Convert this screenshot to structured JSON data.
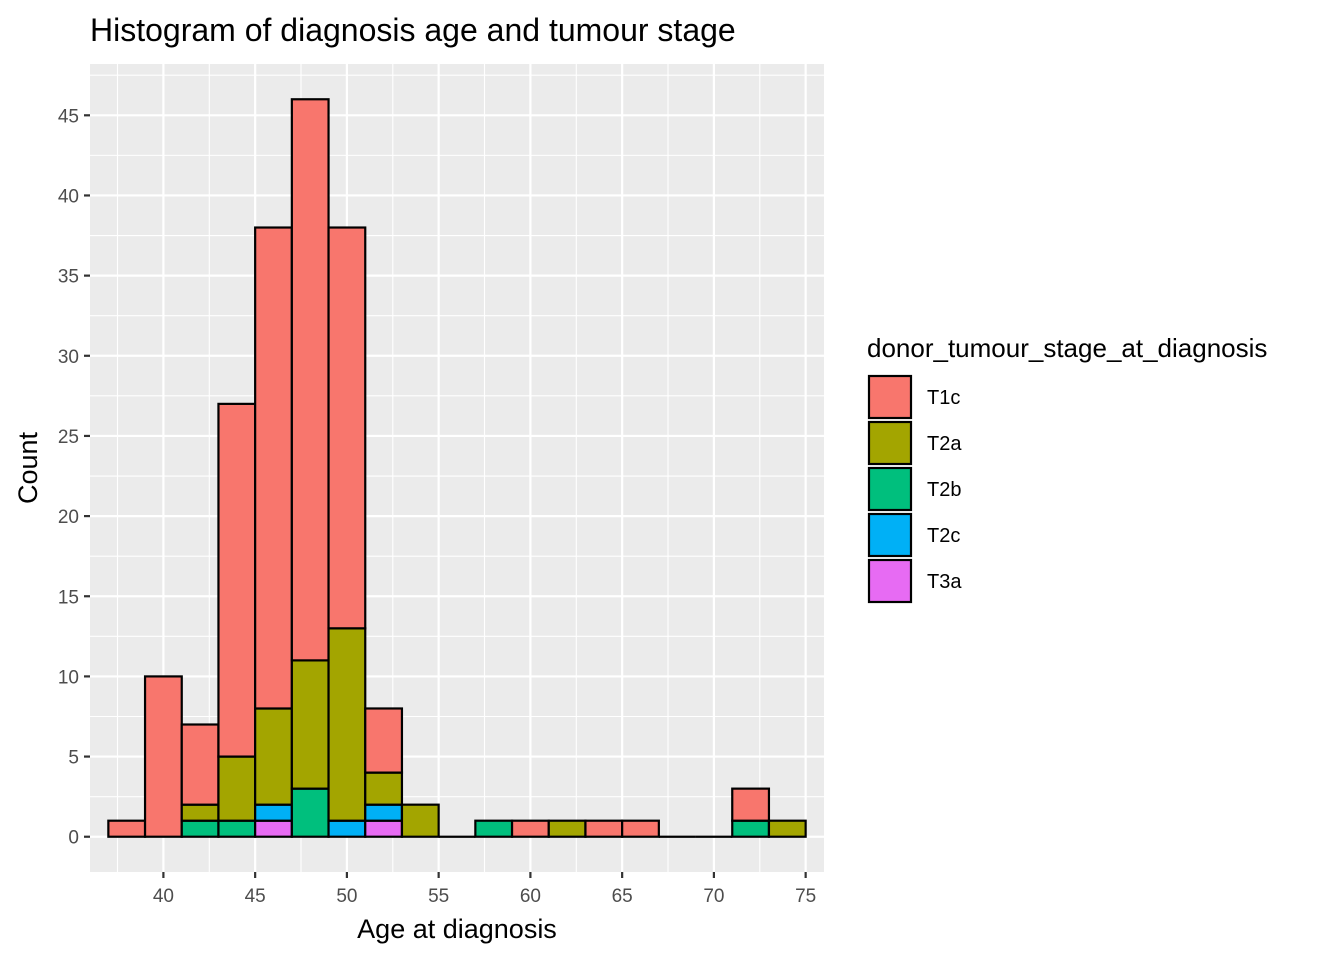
{
  "chart_data": {
    "type": "bar",
    "stacked": true,
    "title": "Histogram of diagnosis age and tumour stage",
    "xlabel": "Age at diagnosis",
    "ylabel": "Count",
    "xlim": [
      36,
      76
    ],
    "ylim": [
      -2.2,
      48.2
    ],
    "x_ticks": [
      40,
      45,
      50,
      55,
      60,
      65,
      70,
      75
    ],
    "y_ticks": [
      0,
      5,
      10,
      15,
      20,
      25,
      30,
      35,
      40,
      45
    ],
    "bin_width": 2,
    "bin_centers": [
      38,
      40,
      42,
      44,
      46,
      48,
      50,
      52,
      54,
      56,
      58,
      60,
      62,
      64,
      66,
      68,
      70,
      72,
      74
    ],
    "legend_title": "donor_tumour_stage_at_diagnosis",
    "legend_position": "right",
    "grid": true,
    "background": "#ebebeb",
    "series": [
      {
        "name": "T1c",
        "color": "#f8766d",
        "values": [
          1,
          10,
          5,
          22,
          30,
          35,
          25,
          4,
          0,
          0,
          0,
          1,
          0,
          1,
          1,
          0,
          0,
          2,
          0
        ]
      },
      {
        "name": "T2a",
        "color": "#a3a500",
        "values": [
          0,
          0,
          1,
          4,
          6,
          8,
          12,
          2,
          2,
          0,
          0,
          0,
          1,
          0,
          0,
          0,
          0,
          0,
          1
        ]
      },
      {
        "name": "T2b",
        "color": "#00bf7d",
        "values": [
          0,
          0,
          1,
          1,
          0,
          3,
          0,
          0,
          0,
          0,
          1,
          0,
          0,
          0,
          0,
          0,
          0,
          1,
          0
        ]
      },
      {
        "name": "T2c",
        "color": "#00b0f6",
        "values": [
          0,
          0,
          0,
          0,
          1,
          0,
          1,
          1,
          0,
          0,
          0,
          0,
          0,
          0,
          0,
          0,
          0,
          0,
          0
        ]
      },
      {
        "name": "T3a",
        "color": "#e76bf3",
        "values": [
          0,
          0,
          0,
          0,
          1,
          0,
          0,
          1,
          0,
          0,
          0,
          0,
          0,
          0,
          0,
          0,
          0,
          0,
          0
        ]
      }
    ]
  }
}
